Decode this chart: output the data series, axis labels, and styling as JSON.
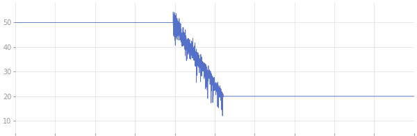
{
  "title": "",
  "figsize": [
    6.0,
    1.96
  ],
  "dpi": 100,
  "line_color": "#5570c8",
  "line_width": 0.6,
  "background_color": "#ffffff",
  "ylim": [
    5,
    58
  ],
  "xlim": [
    0,
    1440
  ],
  "yticks": [
    10,
    20,
    30,
    40,
    50
  ],
  "ytick_fontsize": 7,
  "xtick_fontsize": 6,
  "grid_color": "#e0e0e0",
  "grid_linewidth": 0.5,
  "flat_start_value": 50.0,
  "flat_start_end": 570,
  "noisy_start": 570,
  "noisy_end": 750,
  "flat_end_value": 20.0,
  "flat_end_start": 750,
  "noise_amplitude": 2.5,
  "noise_seed": 7,
  "n_noisy": 800,
  "num_xticks": 10
}
